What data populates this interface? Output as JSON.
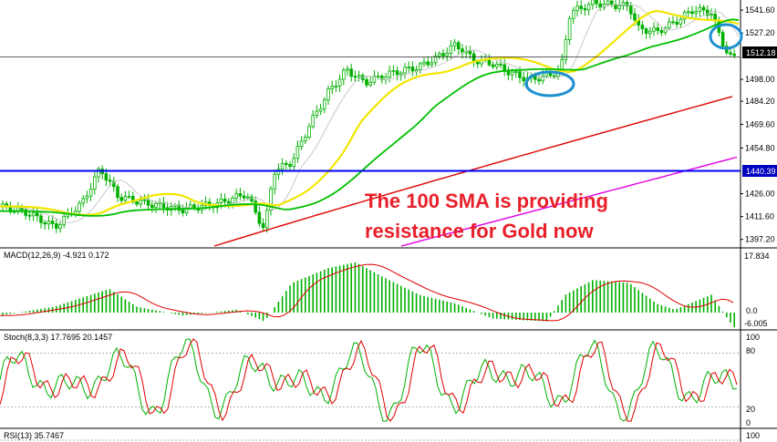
{
  "chart_data": [
    {
      "type": "candlestick",
      "panel": "price",
      "y_ticks": [
        "1541.60",
        "1527.20",
        "1512.18",
        "1498.00",
        "1484.20",
        "1469.60",
        "1454.80",
        "1440.39",
        "1426.00",
        "1411.60",
        "1397.20"
      ],
      "price_tag": "1512.18",
      "support_tag": "1440.39",
      "ylim": [
        1393,
        1548
      ],
      "support_level": 1440.39,
      "current_price": 1512.18,
      "annotation": [
        "The 100 SMA is providing",
        "resistance for Gold now"
      ],
      "series": [
        {
          "name": "",
          "color": "#f2e600",
          "closes_tail": [
            1512,
            1503,
            1515,
            1525,
            1533,
            1536,
            1534,
            1532
          ]
        },
        {
          "name": "",
          "color": "#00c000",
          "closes_tail": [
            1500,
            1496,
            1506,
            1516,
            1521,
            1524,
            1527,
            1526
          ]
        },
        {
          "name": "",
          "color": "#e00000",
          "closes_tail": [
            1478,
            1483,
            1488,
            1492,
            1494,
            1496
          ]
        },
        {
          "name": "",
          "color": "#e000e0",
          "closes_tail": [
            1408,
            1420,
            1432,
            1442,
            1447
          ]
        }
      ],
      "colors": {
        "bull": "#00b000",
        "bear": "#00b000",
        "support": "#0000ff",
        "tag_bg": "#000000",
        "tag_support_bg": "#0000c0",
        "circle": "#1e90d0"
      }
    },
    {
      "type": "histogram",
      "panel": "macd",
      "label": "MACD(12,26,9) -4.921 0.172",
      "y_ticks": [
        "17.834",
        "0.0",
        "-6.005"
      ],
      "ylim": [
        -6.005,
        17.834
      ],
      "histogram_color": "#00b000",
      "signal_color": "#e00000"
    },
    {
      "type": "line",
      "panel": "stochastic",
      "label": "Stoch(8,3,3) 17.7695 20.1457",
      "y_ticks": [
        "100",
        "80",
        "20",
        "0"
      ],
      "ylim": [
        0,
        100
      ],
      "levels": [
        80,
        20
      ],
      "k_color": "#00b000",
      "d_color": "#e00000"
    },
    {
      "type": "line",
      "panel": "rsi",
      "label": "RSI(13) 35.7467",
      "y_ticks": [
        "100"
      ],
      "ylim": [
        0,
        100
      ]
    }
  ]
}
